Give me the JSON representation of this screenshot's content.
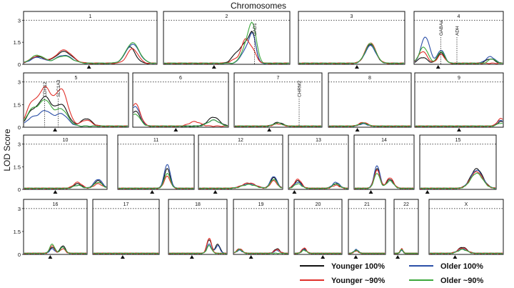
{
  "chart_data": {
    "type": "line",
    "title": "Chromosomes",
    "ylabel": "LOD Score",
    "yticks": [
      "0",
      "1.5",
      "3"
    ],
    "ylim": [
      0,
      3.6
    ],
    "threshold": 3,
    "legend_position": "bottom-right",
    "series": [
      {
        "name": "Younger 100%",
        "color": "#111111"
      },
      {
        "name": "Older 100%",
        "color": "#2b4fa8"
      },
      {
        "name": "Younger ~90%",
        "color": "#e0302a"
      },
      {
        "name": "Older ~90%",
        "color": "#3ca83c"
      }
    ],
    "chromosomes": [
      {
        "label": "1",
        "row": 0,
        "centromere": 0.49,
        "peaks": [
          [
            [
              0.1,
              0.45,
              0.05
            ],
            [
              0.3,
              0.8,
              0.06
            ],
            [
              0.8,
              1.1,
              0.04
            ]
          ],
          [
            [
              0.1,
              0.4,
              0.05
            ],
            [
              0.3,
              0.55,
              0.06
            ],
            [
              0.82,
              1.3,
              0.05
            ]
          ],
          [
            [
              0.1,
              0.5,
              0.05
            ],
            [
              0.3,
              0.9,
              0.06
            ],
            [
              0.82,
              1.0,
              0.04
            ]
          ],
          [
            [
              0.1,
              0.55,
              0.05
            ],
            [
              0.3,
              0.5,
              0.06
            ],
            [
              0.82,
              1.4,
              0.05
            ]
          ]
        ],
        "genes": []
      },
      {
        "label": "2",
        "row": 0,
        "centromere": 0.4,
        "peaks": [
          [
            [
              0.58,
              0.6,
              0.04
            ],
            [
              0.66,
              1.3,
              0.04
            ],
            [
              0.71,
              1.5,
              0.025
            ]
          ],
          [
            [
              0.66,
              1.0,
              0.04
            ],
            [
              0.71,
              1.6,
              0.025
            ]
          ],
          [
            [
              0.58,
              0.3,
              0.04
            ],
            [
              0.65,
              1.5,
              0.03
            ],
            [
              0.71,
              0.8,
              0.03
            ]
          ],
          [
            [
              0.66,
              1.2,
              0.04
            ],
            [
              0.71,
              2.2,
              0.03
            ]
          ]
        ],
        "genes": [
          {
            "name": "GAD1",
            "x": 0.72
          }
        ]
      },
      {
        "label": "3",
        "row": 0,
        "centromere": 0.55,
        "peaks": [
          [
            [
              0.68,
              1.3,
              0.05
            ]
          ],
          [
            [
              0.68,
              1.2,
              0.05
            ]
          ],
          [
            [
              0.68,
              1.4,
              0.05
            ]
          ],
          [
            [
              0.68,
              1.35,
              0.05
            ]
          ]
        ],
        "genes": []
      },
      {
        "label": "4",
        "row": 0,
        "centromere": 0.27,
        "peaks": [
          [
            [
              0.09,
              0.4,
              0.05
            ],
            [
              0.3,
              0.7,
              0.04
            ],
            [
              0.86,
              0.3,
              0.05
            ]
          ],
          [
            [
              0.12,
              1.8,
              0.05
            ],
            [
              0.3,
              0.9,
              0.04
            ],
            [
              0.86,
              0.45,
              0.05
            ]
          ],
          [
            [
              0.09,
              0.8,
              0.05
            ],
            [
              0.3,
              0.6,
              0.04
            ]
          ],
          [
            [
              0.1,
              1.1,
              0.05
            ],
            [
              0.3,
              0.8,
              0.04
            ],
            [
              0.88,
              0.3,
              0.04
            ]
          ]
        ],
        "genes": [
          {
            "name": "GABAa",
            "x": 0.3
          },
          {
            "name": "ADH",
            "x": 0.48
          }
        ]
      },
      {
        "label": "5",
        "row": 1,
        "centromere": 0.3,
        "peaks": [
          [
            [
              0.07,
              0.9,
              0.05
            ],
            [
              0.2,
              1.9,
              0.06
            ],
            [
              0.36,
              1.4,
              0.06
            ],
            [
              0.6,
              0.5,
              0.05
            ]
          ],
          [
            [
              0.07,
              0.5,
              0.05
            ],
            [
              0.2,
              1.0,
              0.06
            ],
            [
              0.36,
              0.8,
              0.06
            ]
          ],
          [
            [
              0.07,
              1.4,
              0.05
            ],
            [
              0.2,
              2.5,
              0.06
            ],
            [
              0.36,
              2.4,
              0.06
            ],
            [
              0.6,
              0.4,
              0.05
            ]
          ],
          [
            [
              0.07,
              1.0,
              0.05
            ],
            [
              0.2,
              1.7,
              0.06
            ],
            [
              0.36,
              1.1,
              0.06
            ]
          ]
        ],
        "genes": [
          {
            "name": "CDH12",
            "x": 0.2
          },
          {
            "name": "SLC1A3",
            "x": 0.33
          }
        ]
      },
      {
        "label": "6",
        "row": 1,
        "centromere": 0.45,
        "peaks": [
          [
            [
              0.02,
              1.0,
              0.05
            ],
            [
              0.85,
              0.6,
              0.06
            ]
          ],
          [
            [
              0.02,
              1.3,
              0.05
            ],
            [
              0.85,
              0.4,
              0.06
            ]
          ],
          [
            [
              0.02,
              1.5,
              0.05
            ],
            [
              0.65,
              0.3,
              0.06
            ]
          ],
          [
            [
              0.02,
              0.8,
              0.05
            ],
            [
              0.85,
              0.4,
              0.06
            ]
          ]
        ],
        "genes": []
      },
      {
        "label": "7",
        "row": 1,
        "centromere": 0.4,
        "peaks": [
          [
            [
              0.5,
              0.25,
              0.05
            ]
          ],
          [
            [
              0.5,
              0.2,
              0.05
            ]
          ],
          [
            [
              0.5,
              0.15,
              0.05
            ]
          ],
          [
            [
              0.5,
              0.2,
              0.05
            ]
          ]
        ],
        "genes": [
          {
            "name": "CHRM2",
            "x": 0.74
          }
        ]
      },
      {
        "label": "8",
        "row": 1,
        "centromere": 0.35,
        "peaks": [
          [
            [
              0.42,
              0.2,
              0.05
            ]
          ],
          [
            [
              0.42,
              0.15,
              0.05
            ]
          ],
          [
            [
              0.42,
              0.25,
              0.05
            ]
          ],
          [
            [
              0.42,
              0.2,
              0.05
            ]
          ]
        ],
        "genes": []
      },
      {
        "label": "9",
        "row": 1,
        "centromere": 0.5,
        "peaks": [
          [
            [
              0.98,
              0.3,
              0.04
            ]
          ],
          [
            [
              0.98,
              0.4,
              0.04
            ]
          ],
          [
            [
              0.98,
              0.5,
              0.04
            ]
          ],
          [
            [
              0.98,
              0.2,
              0.04
            ]
          ]
        ],
        "genes": []
      },
      {
        "label": "10",
        "row": 2,
        "centromere": 0.38,
        "peaks": [
          [
            [
              0.65,
              0.3,
              0.05
            ],
            [
              0.9,
              0.5,
              0.05
            ]
          ],
          [
            [
              0.65,
              0.2,
              0.05
            ],
            [
              0.9,
              0.6,
              0.05
            ]
          ],
          [
            [
              0.65,
              0.4,
              0.05
            ],
            [
              0.9,
              0.3,
              0.05
            ]
          ],
          [
            [
              0.65,
              0.2,
              0.05
            ],
            [
              0.9,
              0.4,
              0.05
            ]
          ]
        ],
        "genes": []
      },
      {
        "label": "11",
        "row": 2,
        "centromere": 0.45,
        "peaks": [
          [
            [
              0.65,
              1.3,
              0.04
            ]
          ],
          [
            [
              0.65,
              1.6,
              0.04
            ]
          ],
          [
            [
              0.65,
              0.8,
              0.04
            ]
          ],
          [
            [
              0.65,
              1.0,
              0.04
            ]
          ]
        ],
        "genes": []
      },
      {
        "label": "12",
        "row": 2,
        "centromere": 0.2,
        "peaks": [
          [
            [
              0.6,
              0.35,
              0.08
            ],
            [
              0.9,
              0.7,
              0.04
            ]
          ],
          [
            [
              0.6,
              0.3,
              0.08
            ],
            [
              0.9,
              0.8,
              0.04
            ]
          ],
          [
            [
              0.6,
              0.35,
              0.08
            ],
            [
              0.9,
              0.5,
              0.04
            ]
          ],
          [
            [
              0.6,
              0.25,
              0.08
            ],
            [
              0.9,
              0.6,
              0.04
            ]
          ]
        ],
        "genes": []
      },
      {
        "label": "13",
        "row": 2,
        "centromere": 0.1,
        "peaks": [
          [
            [
              0.15,
              0.5,
              0.06
            ],
            [
              0.8,
              0.3,
              0.06
            ]
          ],
          [
            [
              0.15,
              0.4,
              0.06
            ],
            [
              0.8,
              0.4,
              0.06
            ]
          ],
          [
            [
              0.15,
              0.6,
              0.06
            ],
            [
              0.8,
              0.2,
              0.06
            ]
          ],
          [
            [
              0.15,
              0.3,
              0.06
            ],
            [
              0.8,
              0.3,
              0.06
            ]
          ]
        ],
        "genes": []
      },
      {
        "label": "14",
        "row": 2,
        "centromere": 0.28,
        "peaks": [
          [
            [
              0.38,
              1.3,
              0.05
            ],
            [
              0.6,
              0.6,
              0.06
            ]
          ],
          [
            [
              0.38,
              1.5,
              0.05
            ],
            [
              0.6,
              0.5,
              0.06
            ]
          ],
          [
            [
              0.38,
              1.2,
              0.05
            ],
            [
              0.6,
              0.7,
              0.06
            ]
          ],
          [
            [
              0.38,
              1.0,
              0.05
            ],
            [
              0.6,
              0.5,
              0.06
            ]
          ]
        ],
        "genes": []
      },
      {
        "label": "15",
        "row": 2,
        "centromere": 0.1,
        "peaks": [
          [
            [
              0.75,
              1.3,
              0.08
            ]
          ],
          [
            [
              0.75,
              1.2,
              0.08
            ]
          ],
          [
            [
              0.75,
              1.1,
              0.08
            ]
          ],
          [
            [
              0.75,
              1.0,
              0.08
            ]
          ]
        ],
        "genes": []
      },
      {
        "label": "16",
        "row": 3,
        "centromere": 0.42,
        "peaks": [
          [
            [
              0.45,
              0.4,
              0.04
            ],
            [
              0.62,
              0.5,
              0.04
            ]
          ],
          [
            [
              0.45,
              0.3,
              0.04
            ],
            [
              0.62,
              0.4,
              0.04
            ]
          ],
          [
            [
              0.45,
              0.5,
              0.04
            ],
            [
              0.62,
              0.3,
              0.04
            ]
          ],
          [
            [
              0.45,
              0.6,
              0.04
            ],
            [
              0.62,
              0.4,
              0.04
            ]
          ]
        ],
        "genes": []
      },
      {
        "label": "17",
        "row": 3,
        "centromere": 0.45,
        "peaks": [
          [],
          [],
          [],
          []
        ],
        "genes": []
      },
      {
        "label": "18",
        "row": 3,
        "centromere": 0.4,
        "peaks": [
          [
            [
              0.7,
              0.9,
              0.04
            ],
            [
              0.85,
              0.6,
              0.04
            ]
          ],
          [
            [
              0.7,
              0.6,
              0.04
            ],
            [
              0.85,
              0.5,
              0.04
            ]
          ],
          [
            [
              0.7,
              1.0,
              0.04
            ]
          ],
          [
            [
              0.7,
              0.5,
              0.04
            ]
          ]
        ],
        "genes": []
      },
      {
        "label": "19",
        "row": 3,
        "centromere": 0.32,
        "peaks": [
          [
            [
              0.1,
              0.3,
              0.05
            ],
            [
              0.8,
              0.3,
              0.05
            ]
          ],
          [
            [
              0.1,
              0.2,
              0.05
            ],
            [
              0.8,
              0.2,
              0.05
            ]
          ],
          [
            [
              0.1,
              0.3,
              0.05
            ],
            [
              0.8,
              0.25,
              0.05
            ]
          ],
          [
            [
              0.1,
              0.25,
              0.05
            ]
          ]
        ],
        "genes": []
      },
      {
        "label": "20",
        "row": 3,
        "centromere": 0.6,
        "peaks": [
          [
            [
              0.2,
              0.3,
              0.05
            ]
          ],
          [
            [
              0.2,
              0.25,
              0.05
            ]
          ],
          [
            [
              0.2,
              0.35,
              0.05
            ]
          ],
          [
            [
              0.2,
              0.2,
              0.05
            ]
          ]
        ],
        "genes": []
      },
      {
        "label": "21",
        "row": 3,
        "centromere": 0.2,
        "peaks": [
          [
            [
              0.2,
              0.2,
              0.06
            ]
          ],
          [
            [
              0.2,
              0.25,
              0.06
            ]
          ],
          [
            [
              0.2,
              0.15,
              0.06
            ]
          ],
          [
            [
              0.2,
              0.2,
              0.06
            ]
          ]
        ],
        "genes": []
      },
      {
        "label": "22",
        "row": 3,
        "centromere": 0.15,
        "peaks": [
          [
            [
              0.3,
              0.25,
              0.06
            ]
          ],
          [
            [
              0.3,
              0.2,
              0.06
            ]
          ],
          [
            [
              0.3,
              0.3,
              0.06
            ]
          ],
          [
            [
              0.3,
              0.25,
              0.06
            ]
          ]
        ],
        "genes": []
      },
      {
        "label": "X",
        "row": 3,
        "centromere": 0.35,
        "peaks": [
          [
            [
              0.45,
              0.4,
              0.06
            ]
          ],
          [
            [
              0.45,
              0.3,
              0.06
            ]
          ],
          [
            [
              0.45,
              0.35,
              0.06
            ]
          ],
          [
            [
              0.45,
              0.25,
              0.06
            ]
          ]
        ],
        "genes": []
      }
    ]
  }
}
